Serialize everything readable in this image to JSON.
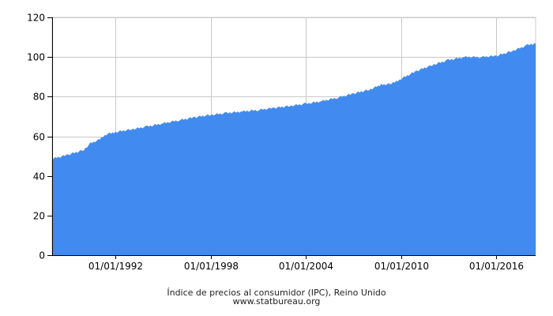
{
  "chart_data": {
    "type": "area",
    "title": "",
    "xlabel": "",
    "ylabel": "",
    "caption": "Índice de precios al consumidor (IPC), Reino Unido",
    "source": "www.statbureau.org",
    "x_range": [
      "1988-01-01",
      "2018-07-01"
    ],
    "ylim": [
      0,
      120
    ],
    "y_ticks": [
      0,
      20,
      40,
      60,
      80,
      100,
      120
    ],
    "x_ticks": [
      {
        "date": "1992-01-01",
        "label": "01/01/1992"
      },
      {
        "date": "1998-01-01",
        "label": "01/01/1998"
      },
      {
        "date": "2004-01-01",
        "label": "01/01/2004"
      },
      {
        "date": "2010-01-01",
        "label": "01/01/2010"
      },
      {
        "date": "2016-01-01",
        "label": "01/01/2016"
      }
    ],
    "grid": true,
    "legend": "none",
    "fill_color": "#418bf0",
    "series": [
      {
        "points": [
          [
            "1988-01-01",
            48.6
          ],
          [
            "1989-01-01",
            50.7
          ],
          [
            "1990-01-01",
            53.1
          ],
          [
            "1990-06-01",
            56.5
          ],
          [
            "1991-01-01",
            58.3
          ],
          [
            "1991-06-01",
            61.0
          ],
          [
            "1992-01-01",
            62.1
          ],
          [
            "1993-01-01",
            63.5
          ],
          [
            "1994-01-01",
            64.9
          ],
          [
            "1995-01-01",
            66.5
          ],
          [
            "1996-01-01",
            68.1
          ],
          [
            "1997-01-01",
            69.6
          ],
          [
            "1998-01-01",
            70.8
          ],
          [
            "1999-01-01",
            71.7
          ],
          [
            "2000-01-01",
            72.5
          ],
          [
            "2001-01-01",
            73.3
          ],
          [
            "2002-01-01",
            74.3
          ],
          [
            "2003-01-01",
            75.3
          ],
          [
            "2004-01-01",
            76.4
          ],
          [
            "2005-01-01",
            77.7
          ],
          [
            "2006-01-01",
            79.5
          ],
          [
            "2007-01-01",
            81.5
          ],
          [
            "2008-01-01",
            83.5
          ],
          [
            "2008-10-01",
            86.0
          ],
          [
            "2009-06-01",
            86.5
          ],
          [
            "2010-01-01",
            89.0
          ],
          [
            "2011-01-01",
            93.0
          ],
          [
            "2012-01-01",
            96.0
          ],
          [
            "2013-01-01",
            98.5
          ],
          [
            "2014-01-01",
            100.0
          ],
          [
            "2015-01-01",
            100.0
          ],
          [
            "2016-01-01",
            100.5
          ],
          [
            "2017-01-01",
            103.0
          ],
          [
            "2018-01-01",
            106.0
          ],
          [
            "2018-07-01",
            107.0
          ]
        ]
      }
    ]
  }
}
